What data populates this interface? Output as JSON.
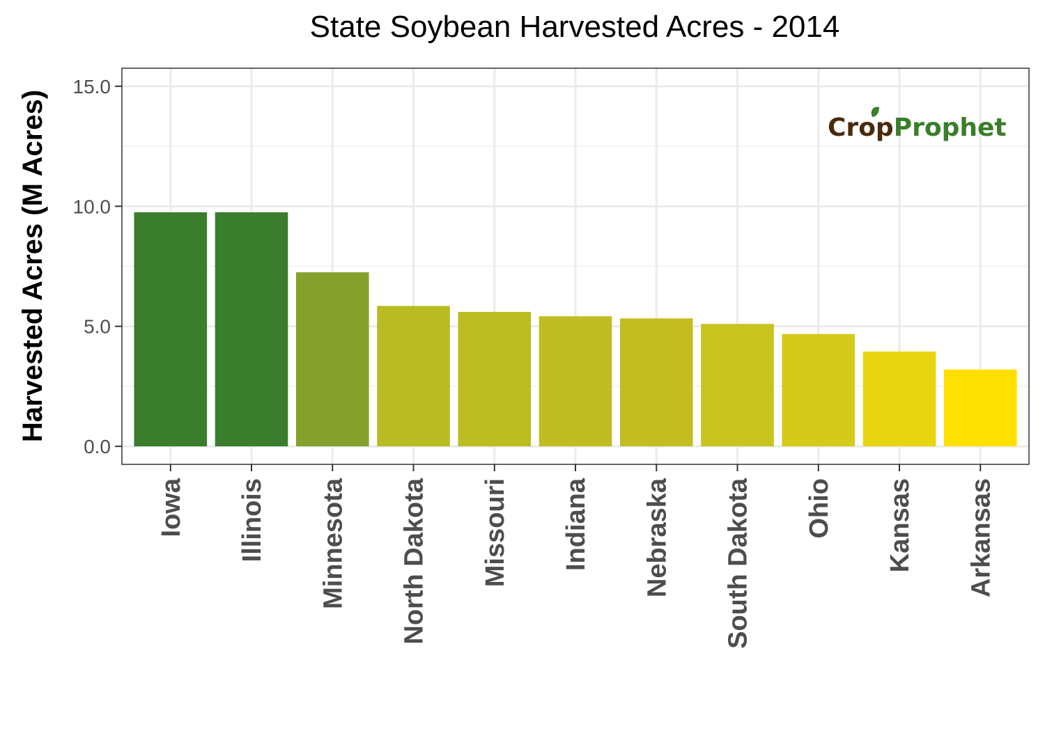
{
  "chart_data": {
    "type": "bar",
    "title": "State Soybean Harvested Acres - 2014",
    "xlabel": "",
    "ylabel": "Harvested Acres (M Acres)",
    "ylim": [
      -0.75,
      15.75
    ],
    "yticks": [
      0.0,
      5.0,
      10.0,
      15.0
    ],
    "ytick_labels": [
      "0.0",
      "5.0",
      "10.0",
      "15.0"
    ],
    "categories": [
      "Iowa",
      "Illinois",
      "Minnesota",
      "North Dakota",
      "Missouri",
      "Indiana",
      "Nebraska",
      "South Dakota",
      "Ohio",
      "Kansas",
      "Arkansas"
    ],
    "values": [
      9.75,
      9.75,
      7.25,
      5.85,
      5.6,
      5.42,
      5.33,
      5.1,
      4.68,
      3.95,
      3.2
    ],
    "bar_colors": [
      "#397d2d",
      "#397d2d",
      "#85a12b",
      "#b8bb24",
      "#bcbc23",
      "#bfbd22",
      "#c2be21",
      "#c9c320",
      "#d5c91a",
      "#e8d410",
      "#ffe000"
    ],
    "grid": true,
    "legend": "none"
  },
  "logo": {
    "part1": "Cr",
    "part2": "o",
    "part3": "p",
    "part4": "Prophet",
    "color_dark": "#4a2a0c",
    "color_green": "#3a7d2a"
  }
}
